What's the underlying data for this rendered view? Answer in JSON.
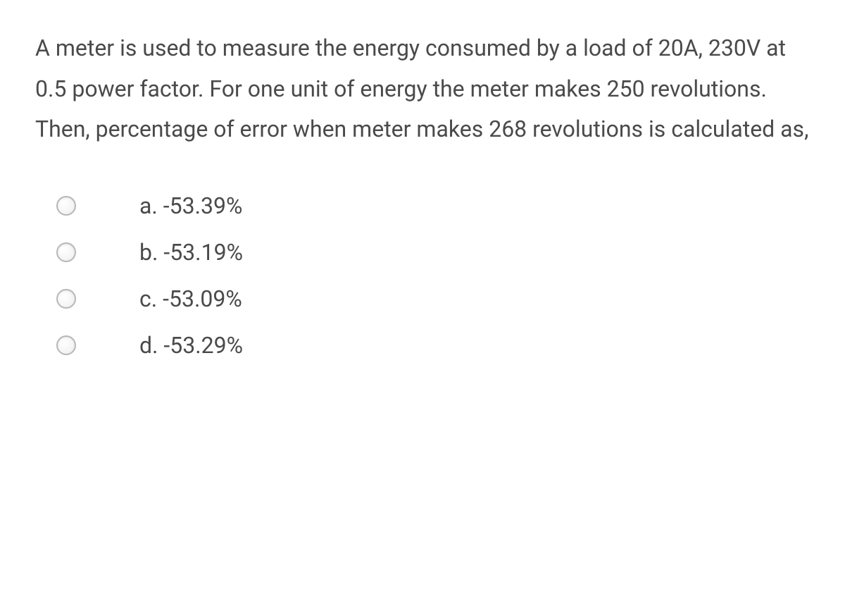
{
  "question": {
    "text": "A meter is used to measure the energy consumed by a load of 20A, 230V at 0.5 power factor. For one unit of energy the meter makes 250 revolutions. Then, percentage of error when meter makes 268 revolutions is calculated as,",
    "text_color": "#4a4a4a",
    "font_size": 32,
    "line_height": 1.8
  },
  "options": [
    {
      "label": "a. -53.39%"
    },
    {
      "label": "b. -53.19%"
    },
    {
      "label": "c. -53.09%"
    },
    {
      "label": "d. -53.29%"
    }
  ],
  "styling": {
    "background_color": "#ffffff",
    "option_font_size": 32,
    "option_text_color": "#4a4a4a",
    "radio_border_color": "#b8b8b8",
    "radio_size": 28
  }
}
